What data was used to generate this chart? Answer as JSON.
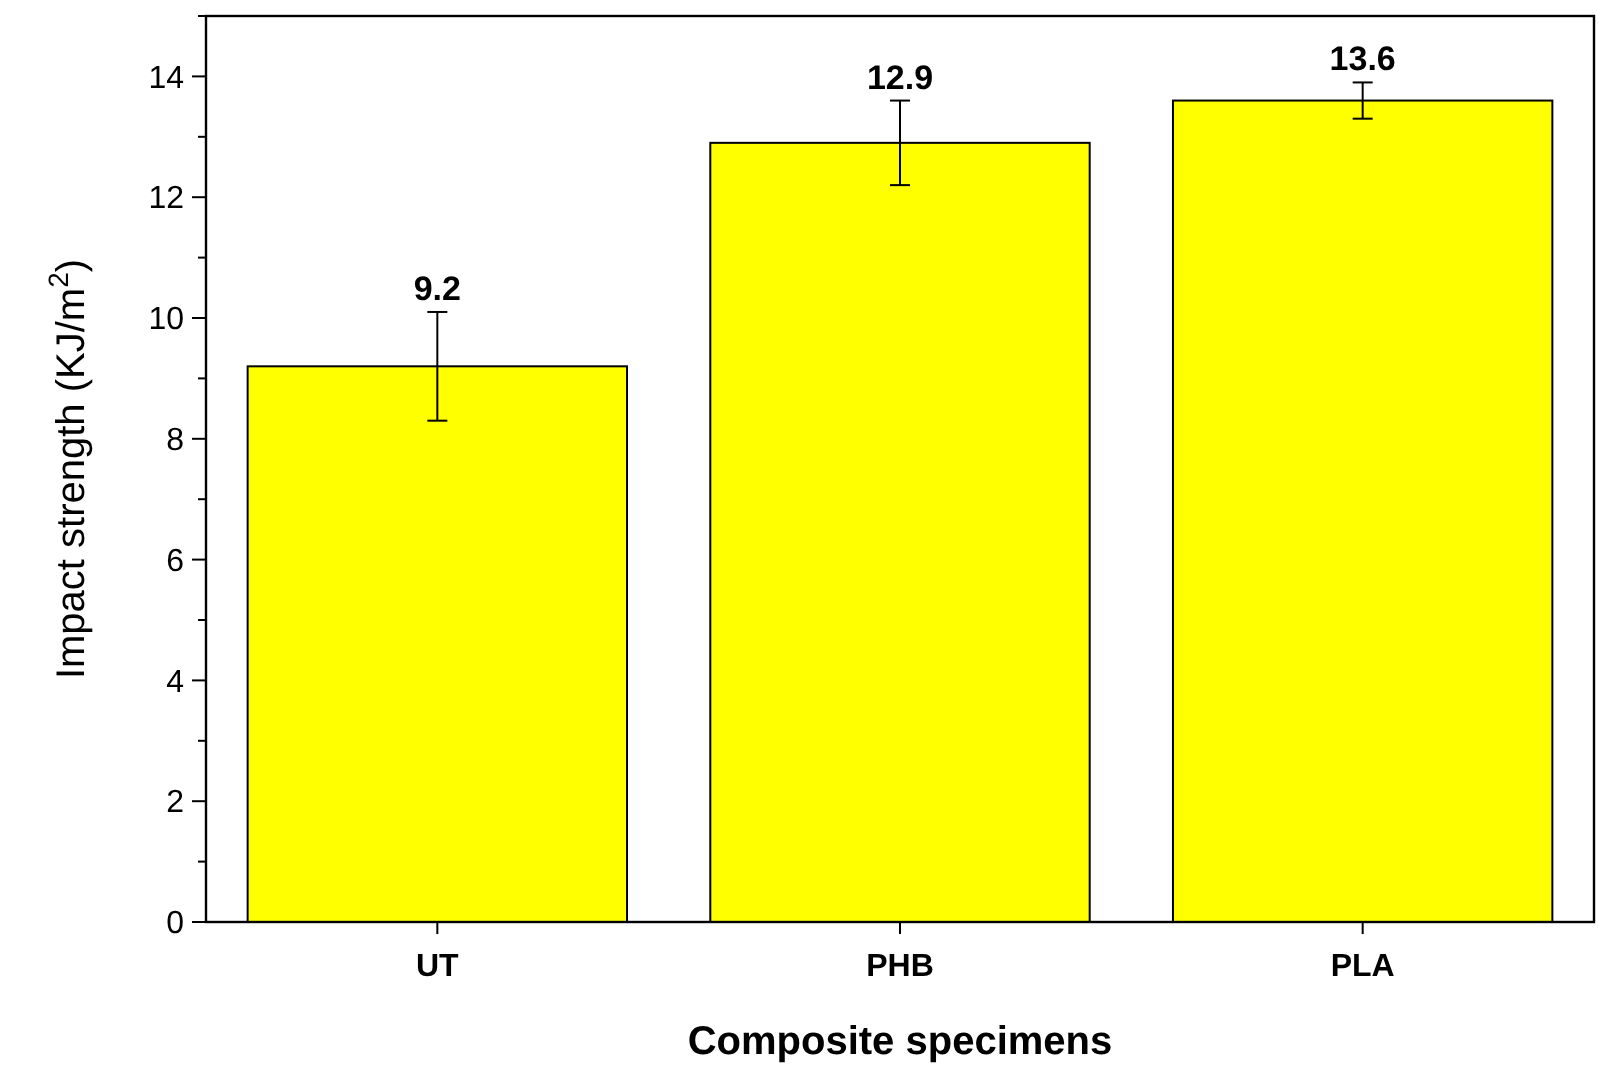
{
  "chart_data": {
    "type": "bar",
    "xlabel": "Composite specimens",
    "ylabel": "Impact strength (KJ/m$^{2}$)",
    "categories": [
      "UT",
      "PHB",
      "PLA"
    ],
    "values": [
      9.2,
      12.9,
      13.6
    ],
    "errors": [
      0.9,
      0.7,
      0.3
    ],
    "color": "#ffff00",
    "data_labels": true,
    "ylim": [
      0,
      15
    ],
    "yticks": [
      0,
      {
        "value": 1,
        "label": null
      },
      2,
      {
        "value": 3,
        "label": null
      },
      4,
      {
        "value": 5,
        "label": null
      },
      6,
      {
        "value": 7,
        "label": null
      },
      8,
      {
        "value": 9,
        "label": null
      },
      10,
      {
        "value": 11,
        "label": null
      },
      12,
      {
        "value": 13,
        "label": null
      },
      14,
      {
        "value": 15,
        "label": null
      }
    ],
    "grid": false
  }
}
